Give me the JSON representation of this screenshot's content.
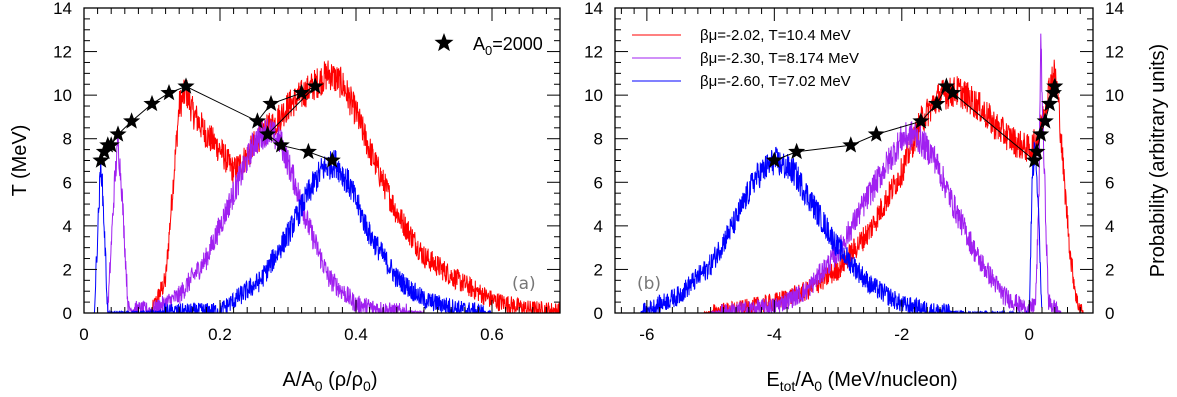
{
  "chart_data": [
    {
      "type": "line",
      "panel_label": "(a)",
      "xlabel": "A/A0 (ρ/ρ0)",
      "ylabel": "T (MeV)",
      "xlim": [
        0,
        0.7
      ],
      "ylim": [
        0,
        14
      ],
      "xticks": [
        "0",
        "0.2",
        "0.4",
        "0.6"
      ],
      "yticks": [
        "0",
        "2",
        "4",
        "6",
        "8",
        "10",
        "12",
        "14"
      ],
      "legend": {
        "symbol": "★",
        "label": "A0=2000",
        "placement": "top-right"
      },
      "series": [
        {
          "color": "#ff0000",
          "style": "noisy-histogram",
          "x": [
            0.1,
            0.12,
            0.13,
            0.14,
            0.15,
            0.16,
            0.18,
            0.2,
            0.22,
            0.24,
            0.26,
            0.28,
            0.3,
            0.32,
            0.34,
            0.36,
            0.38,
            0.4,
            0.42,
            0.44,
            0.46,
            0.5,
            0.55,
            0.6,
            0.65,
            0.7
          ],
          "y": [
            0.1,
            1.5,
            5.5,
            9.5,
            10.2,
            9.2,
            8.2,
            7.5,
            6.5,
            7.2,
            8.2,
            8.7,
            9.5,
            10.0,
            10.5,
            11.0,
            10.5,
            9.2,
            7.5,
            6.0,
            4.6,
            2.6,
            1.5,
            0.6,
            0.2,
            0.1
          ]
        },
        {
          "color": "#a020f0",
          "style": "noisy-histogram",
          "x": [
            0.035,
            0.045,
            0.05,
            0.055,
            0.065,
            0.1,
            0.14,
            0.18,
            0.22,
            0.25,
            0.27,
            0.29,
            0.31,
            0.33,
            0.36,
            0.4,
            0.45,
            0.5
          ],
          "y": [
            0.1,
            6.0,
            7.8,
            6.0,
            0.2,
            0.1,
            0.8,
            2.5,
            5.5,
            7.8,
            8.4,
            7.8,
            6.0,
            4.0,
            1.6,
            0.4,
            0.1,
            0.0
          ]
        },
        {
          "color": "#0000ff",
          "style": "noisy-histogram",
          "x": [
            0.015,
            0.022,
            0.025,
            0.029,
            0.035,
            0.2,
            0.26,
            0.3,
            0.33,
            0.35,
            0.37,
            0.39,
            0.42,
            0.46,
            0.5,
            0.55,
            0.6
          ],
          "y": [
            0.0,
            5.0,
            7.0,
            4.5,
            0.0,
            0.1,
            1.5,
            3.6,
            5.5,
            6.6,
            6.9,
            5.9,
            3.6,
            1.6,
            0.6,
            0.2,
            0.0
          ]
        },
        {
          "color": "#000000",
          "style": "line-stars",
          "x": [
            0.025,
            0.03,
            0.035,
            0.04,
            0.05,
            0.07,
            0.1,
            0.125,
            0.15,
            0.255,
            0.275,
            0.32,
            0.34,
            0.27,
            0.29,
            0.33,
            0.365
          ],
          "y": [
            7.0,
            7.4,
            7.7,
            7.7,
            8.2,
            8.8,
            9.6,
            10.1,
            10.4,
            8.8,
            9.6,
            10.1,
            10.4,
            8.2,
            7.7,
            7.4,
            7.0
          ]
        }
      ]
    },
    {
      "type": "line",
      "panel_label": "(b)",
      "xlabel": "Etot/A0 (MeV/nucleon)",
      "ylabel": "T (MeV)",
      "ylabel_right": "Probability (arbitrary units)",
      "xlim": [
        -6.5,
        1.0
      ],
      "ylim": [
        0,
        14
      ],
      "xticks": [
        "-6",
        "-4",
        "-2",
        "0"
      ],
      "yticks": [
        "0",
        "2",
        "4",
        "6",
        "8",
        "10",
        "12",
        "14"
      ],
      "legend": [
        {
          "color": "#ff0000",
          "label": "βμ=-2.02, T=10.4 MeV"
        },
        {
          "color": "#a020f0",
          "label": "βμ=-2.30, T=8.174 MeV"
        },
        {
          "color": "#0000ff",
          "label": "βμ=-2.60, T=7.02 MeV"
        }
      ],
      "series": [
        {
          "color": "#ff0000",
          "style": "noisy-histogram",
          "x": [
            -5.1,
            -4.5,
            -4.0,
            -3.5,
            -3.0,
            -2.5,
            -2.0,
            -1.7,
            -1.4,
            -1.1,
            -0.8,
            -0.5,
            -0.2,
            0.0,
            0.15,
            0.25,
            0.35,
            0.4,
            0.45,
            0.55,
            0.65,
            0.75,
            0.85
          ],
          "y": [
            0.0,
            0.2,
            0.5,
            1.0,
            2.0,
            3.8,
            6.5,
            8.8,
            10.0,
            10.2,
            9.5,
            8.5,
            7.8,
            7.5,
            8.0,
            9.5,
            10.8,
            11.0,
            10.0,
            6.0,
            2.5,
            0.5,
            0.0
          ]
        },
        {
          "color": "#a020f0",
          "style": "noisy-histogram",
          "x": [
            -5.0,
            -4.0,
            -3.5,
            -3.0,
            -2.5,
            -2.0,
            -1.8,
            -1.5,
            -1.2,
            -0.8,
            -0.4,
            0.0,
            0.1,
            0.15,
            0.18,
            0.22,
            0.3,
            0.5
          ],
          "y": [
            0.0,
            0.3,
            1.0,
            2.8,
            5.5,
            8.0,
            8.2,
            7.2,
            5.0,
            2.5,
            0.8,
            0.1,
            0.5,
            5.0,
            12.8,
            8.0,
            0.5,
            0.0
          ]
        },
        {
          "color": "#0000ff",
          "style": "noisy-histogram",
          "x": [
            -6.1,
            -5.5,
            -5.0,
            -4.6,
            -4.3,
            -4.0,
            -3.7,
            -3.4,
            -3.0,
            -2.5,
            -2.0,
            -1.5,
            -1.0,
            0.0,
            0.05,
            0.1,
            0.15,
            0.2
          ],
          "y": [
            0.0,
            0.8,
            2.2,
            4.3,
            6.2,
            7.0,
            6.5,
            5.0,
            3.0,
            1.3,
            0.4,
            0.1,
            0.0,
            0.0,
            6.5,
            7.8,
            4.0,
            0.0
          ]
        },
        {
          "color": "#000000",
          "style": "line-stars",
          "x": [
            -4.0,
            -3.65,
            -2.8,
            -2.4,
            -1.7,
            -1.45,
            -1.3,
            -1.2,
            0.08,
            0.12,
            0.18,
            0.25,
            0.32,
            0.38,
            0.4
          ],
          "y": [
            7.0,
            7.4,
            7.7,
            8.2,
            8.8,
            9.6,
            10.4,
            10.1,
            7.0,
            7.4,
            8.2,
            8.8,
            9.6,
            10.1,
            10.4
          ]
        }
      ]
    }
  ]
}
